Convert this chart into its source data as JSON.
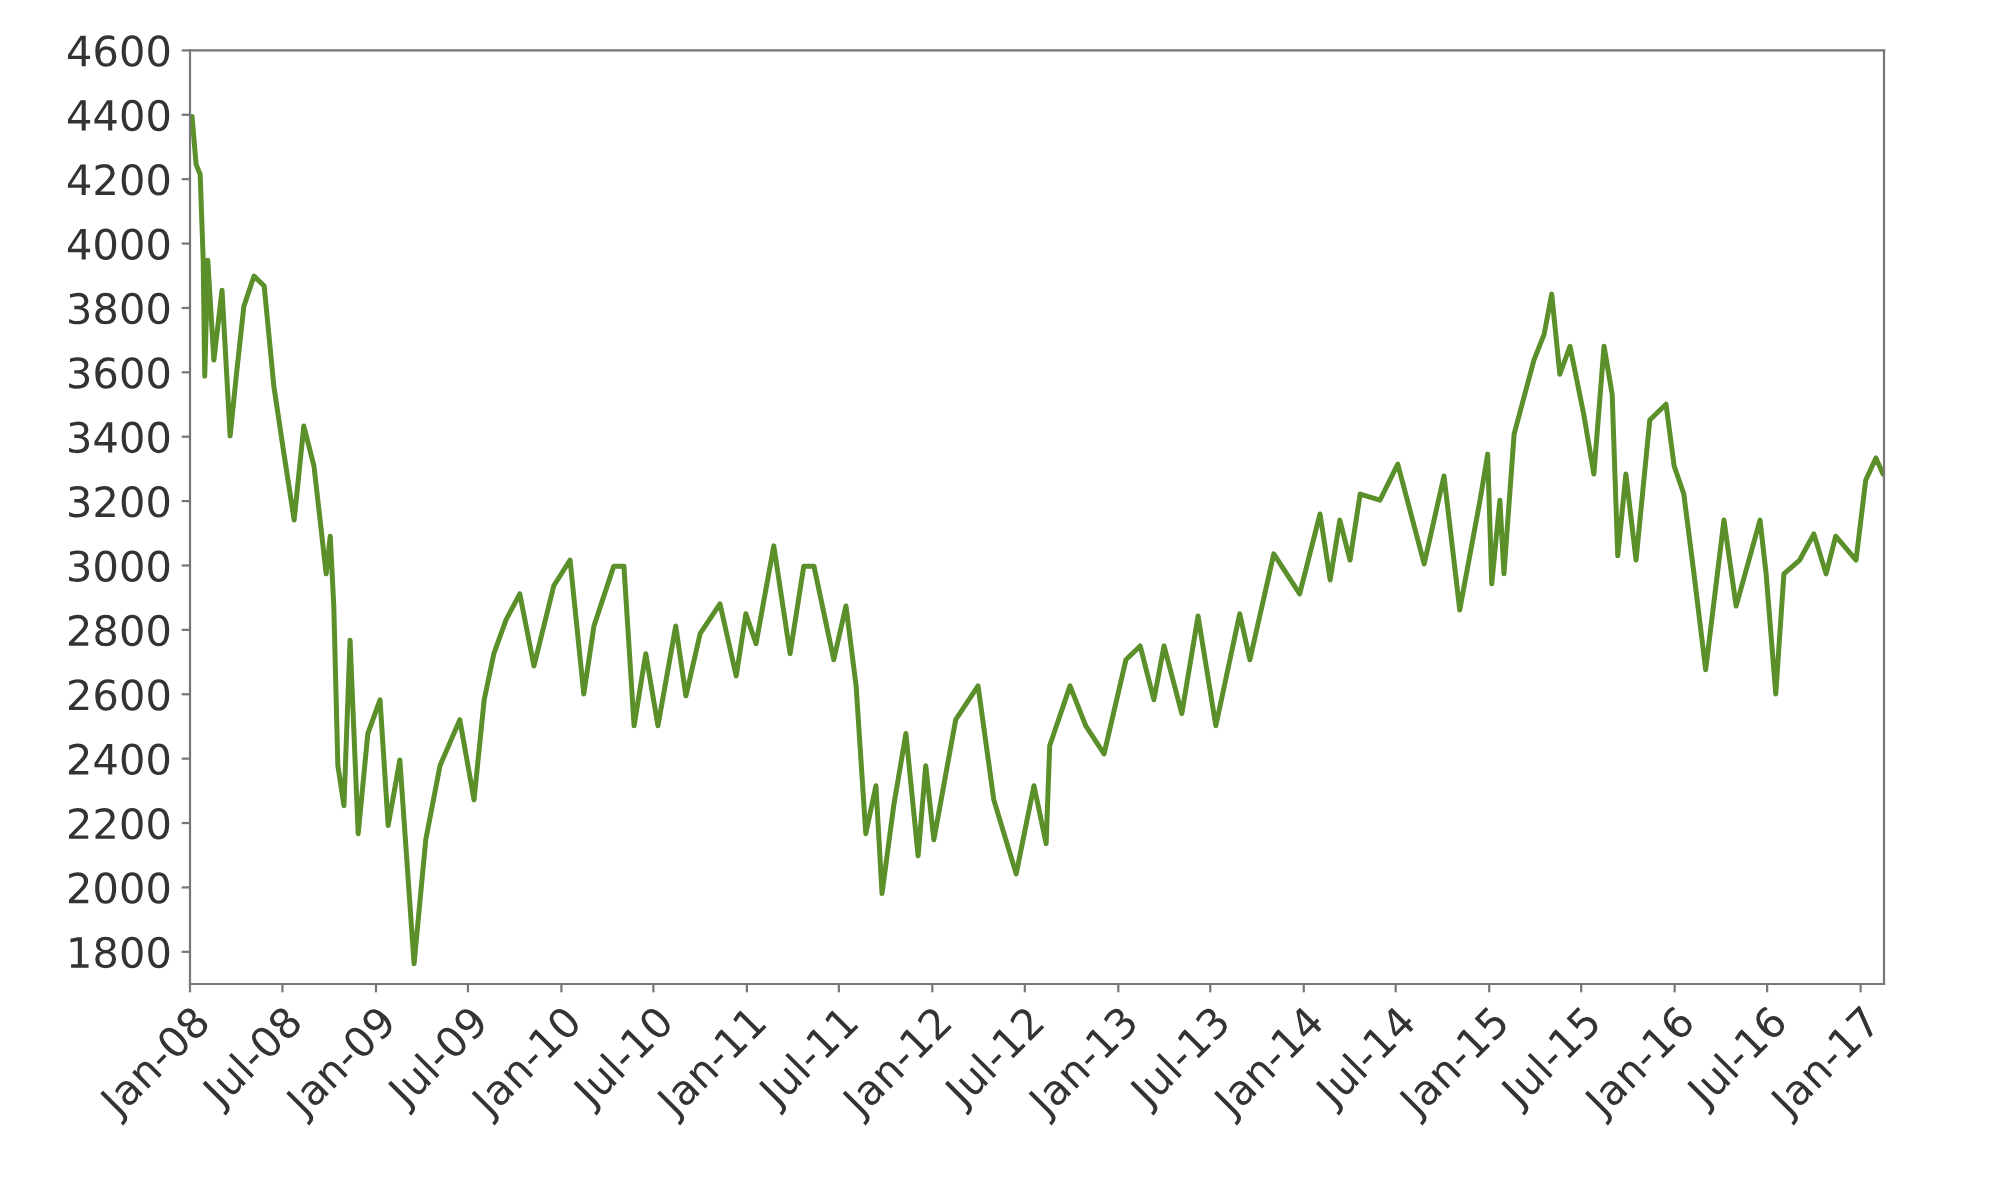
{
  "chart_data": {
    "type": "line",
    "x": [
      "2008-01-05",
      "2008-01-13",
      "2008-01-21",
      "2008-01-27",
      "2008-01-30",
      "2008-02-05",
      "2008-02-17",
      "2008-03-04",
      "2008-03-20",
      "2008-04-01",
      "2008-04-16",
      "2008-05-06",
      "2008-05-26",
      "2008-06-14",
      "2008-07-04",
      "2008-07-24",
      "2008-08-12",
      "2008-09-01",
      "2008-09-25",
      "2008-10-03",
      "2008-10-10",
      "2008-10-18",
      "2008-10-30",
      "2008-11-11",
      "2008-11-27",
      "2008-12-16",
      "2009-01-09",
      "2009-01-25",
      "2009-02-17",
      "2009-03-17",
      "2009-04-09",
      "2009-05-07",
      "2009-06-15",
      "2009-07-13",
      "2009-08-02",
      "2009-08-21",
      "2009-09-14",
      "2009-10-11",
      "2009-11-08",
      "2009-12-17",
      "2010-01-18",
      "2010-02-14",
      "2010-03-06",
      "2010-04-14",
      "2010-05-04",
      "2010-05-24",
      "2010-06-16",
      "2010-07-10",
      "2010-08-14",
      "2010-09-03",
      "2010-10-01",
      "2010-11-09",
      "2010-12-11",
      "2010-12-30",
      "2011-01-19",
      "2011-02-23",
      "2011-03-27",
      "2011-04-23",
      "2011-05-13",
      "2011-06-21",
      "2011-07-15",
      "2011-08-04",
      "2011-08-23",
      "2011-09-12",
      "2011-09-24",
      "2011-10-17",
      "2011-11-10",
      "2011-12-04",
      "2011-12-19",
      "2012-01-04",
      "2012-02-16",
      "2012-03-31",
      "2012-05-01",
      "2012-06-14",
      "2012-07-19",
      "2012-08-12",
      "2012-08-19",
      "2012-09-28",
      "2012-10-29",
      "2012-12-04",
      "2013-01-16",
      "2013-02-13",
      "2013-03-12",
      "2013-04-01",
      "2013-05-06",
      "2013-06-07",
      "2013-07-12",
      "2013-08-28",
      "2013-09-17",
      "2013-11-03",
      "2013-12-24",
      "2014-02-02",
      "2014-02-22",
      "2014-03-13",
      "2014-04-02",
      "2014-04-22",
      "2014-05-31",
      "2014-07-05",
      "2014-08-26",
      "2014-10-04",
      "2014-11-04",
      "2014-12-14",
      "2014-12-29",
      "2015-01-06",
      "2015-01-22",
      "2015-01-30",
      "2015-02-19",
      "2015-03-30",
      "2015-04-19",
      "2015-05-04",
      "2015-05-20",
      "2015-06-09",
      "2015-07-06",
      "2015-07-26",
      "2015-08-15",
      "2015-08-31",
      "2015-09-11",
      "2015-09-27",
      "2015-10-17",
      "2015-11-13",
      "2015-12-15",
      "2015-12-31",
      "2016-01-19",
      "2016-02-08",
      "2016-03-02",
      "2016-04-07",
      "2016-05-01",
      "2016-06-17",
      "2016-06-29",
      "2016-07-18",
      "2016-08-03",
      "2016-09-03",
      "2016-10-01",
      "2016-10-25",
      "2016-11-13",
      "2016-12-23",
      "2017-01-11",
      "2017-01-31",
      "2017-02-14"
    ],
    "series": [
      {
        "color": "#5a8f29",
        "values": [
          4395,
          4246,
          4215,
          3948,
          3588,
          3948,
          3638,
          3855,
          3402,
          3588,
          3805,
          3899,
          3868,
          3557,
          3346,
          3141,
          3433,
          3309,
          2974,
          3091,
          2874,
          2378,
          2254,
          2768,
          2167,
          2478,
          2583,
          2192,
          2396,
          1763,
          2148,
          2378,
          2521,
          2272,
          2583,
          2726,
          2831,
          2912,
          2688,
          2937,
          3017,
          2601,
          2812,
          2998,
          2998,
          2502,
          2726,
          2502,
          2812,
          2595,
          2788,
          2881,
          2657,
          2850,
          2757,
          3061,
          2726,
          2998,
          2998,
          2707,
          2874,
          2626,
          2167,
          2316,
          1981,
          2254,
          2478,
          2098,
          2378,
          2148,
          2521,
          2626,
          2272,
          2042,
          2316,
          2136,
          2440,
          2626,
          2502,
          2415,
          2707,
          2750,
          2583,
          2750,
          2540,
          2843,
          2502,
          2850,
          2707,
          3036,
          2912,
          3160,
          2955,
          3141,
          3017,
          3222,
          3203,
          3315,
          3005,
          3278,
          2862,
          3203,
          3346,
          2943,
          3203,
          2974,
          3408,
          3638,
          3718,
          3843,
          3594,
          3681,
          3470,
          3284,
          3681,
          3532,
          3030,
          3284,
          3017,
          3452,
          3501,
          3309,
          3222,
          2974,
          2676,
          3141,
          2874,
          3141,
          2974,
          2601,
          2974,
          3017,
          3098,
          2974,
          3091,
          3017,
          3265,
          3334,
          3284
        ]
      }
    ],
    "xlim": [
      "2008-01-01",
      "2017-02-16"
    ],
    "xticks": [
      {
        "value": "2008-01",
        "label": "Jan-08"
      },
      {
        "value": "2008-07",
        "label": "Jul-08"
      },
      {
        "value": "2009-01",
        "label": "Jan-09"
      },
      {
        "value": "2009-07",
        "label": "Jul-09"
      },
      {
        "value": "2010-01",
        "label": "Jan-10"
      },
      {
        "value": "2010-07",
        "label": "Jul-10"
      },
      {
        "value": "2011-01",
        "label": "Jan-11"
      },
      {
        "value": "2011-07",
        "label": "Jul-11"
      },
      {
        "value": "2012-01",
        "label": "Jan-12"
      },
      {
        "value": "2012-07",
        "label": "Jul-12"
      },
      {
        "value": "2013-01",
        "label": "Jan-13"
      },
      {
        "value": "2013-07",
        "label": "Jul-13"
      },
      {
        "value": "2014-01",
        "label": "Jan-14"
      },
      {
        "value": "2014-07",
        "label": "Jul-14"
      },
      {
        "value": "2015-01",
        "label": "Jan-15"
      },
      {
        "value": "2015-07",
        "label": "Jul-15"
      },
      {
        "value": "2016-01",
        "label": "Jan-16"
      },
      {
        "value": "2016-07",
        "label": "Jul-16"
      },
      {
        "value": "2017-01",
        "label": "Jan-17"
      }
    ],
    "ylim": [
      1700,
      4600
    ],
    "yticks": [
      1800,
      2000,
      2200,
      2400,
      2600,
      2800,
      3000,
      3200,
      3400,
      3600,
      3800,
      4000,
      4200,
      4400,
      4600
    ],
    "grid": false
  }
}
